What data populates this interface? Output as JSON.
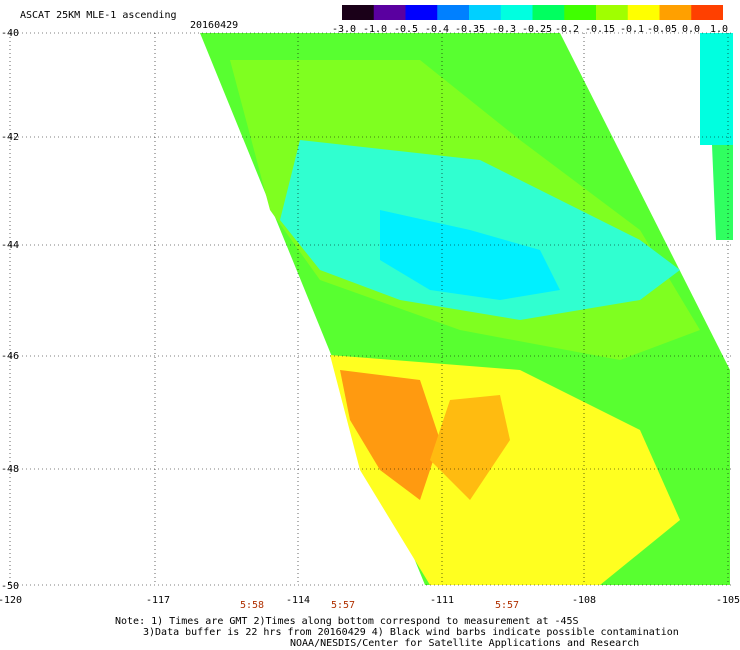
{
  "header": {
    "title": "ASCAT 25KM MLE-1 ascending",
    "date": "20160429"
  },
  "colorbar": {
    "tick_labels": [
      "-3.0",
      "-1.0",
      "-0.5",
      "-0.4",
      "-0.35",
      "-0.3",
      "-0.25",
      "-0.2",
      "-0.15",
      "-0.1",
      "-0.05",
      "0.0",
      "1.0"
    ],
    "colors": [
      "#1a0018",
      "#5a00a0",
      "#0000ff",
      "#0080ff",
      "#00d0ff",
      "#00ffe0",
      "#00ff60",
      "#40ff00",
      "#a0ff00",
      "#ffff00",
      "#ffa000",
      "#ff4000"
    ]
  },
  "map": {
    "lat_labels": [
      "-40",
      "-42",
      "-44",
      "-46",
      "-48",
      "-50"
    ],
    "lon_labels": [
      "-120",
      "-117",
      "-114",
      "-111",
      "-108",
      "-105"
    ],
    "pass_times": [
      "5:58",
      "5:57",
      "5:57"
    ],
    "grid": "dotted"
  },
  "notes": {
    "line1": "Note: 1) Times are GMT 2)Times along bottom correspond to measurement at -45S",
    "line2": "3)Data buffer is 22 hrs from 20160429 4) Black wind barbs indicate possible contamination",
    "line3": "NOAA/NESDIS/Center for Satellite Applications and Research"
  }
}
